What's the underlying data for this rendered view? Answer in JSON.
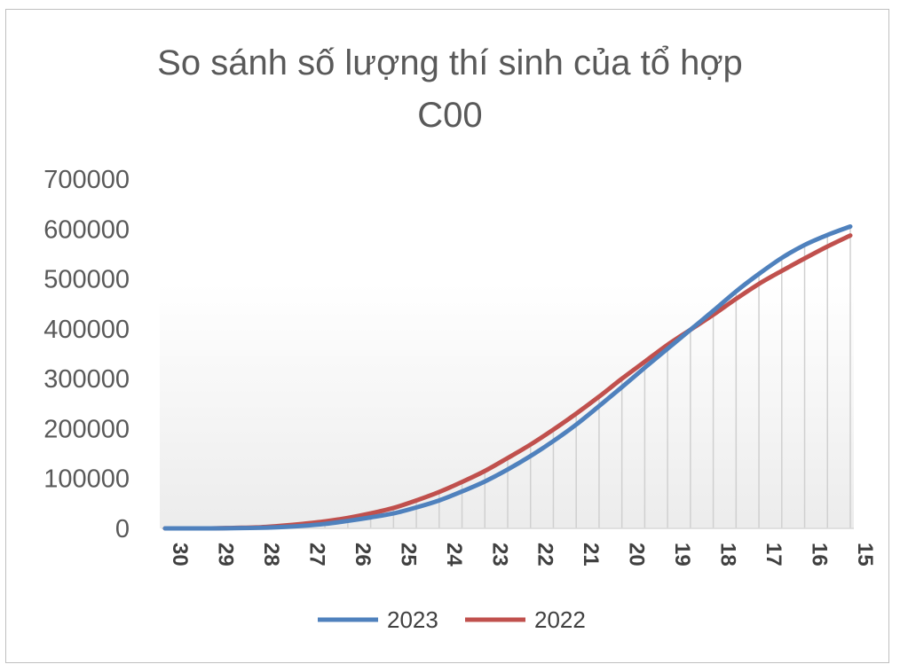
{
  "chart_data": {
    "type": "line",
    "title_lines": [
      "So sánh số lượng thí sinh của tổ hợp",
      "C00"
    ],
    "xlabel": "",
    "ylabel": "",
    "ylim": [
      0,
      700000
    ],
    "yticks": [
      "0",
      "100000",
      "200000",
      "300000",
      "400000",
      "500000",
      "600000",
      "700000"
    ],
    "x": [
      30,
      29.5,
      29,
      28.5,
      28,
      27.5,
      27,
      26.5,
      26,
      25.5,
      25,
      24.5,
      24,
      23.5,
      23,
      22.5,
      22,
      21.5,
      21,
      20.5,
      20,
      19.5,
      19,
      18.5,
      18,
      17.5,
      17,
      16.5,
      16,
      15.5,
      15
    ],
    "xticks": [
      "30",
      "29",
      "28",
      "27",
      "26",
      "25",
      "24",
      "23",
      "22",
      "21",
      "20",
      "19",
      "18",
      "17",
      "16",
      "15"
    ],
    "series": [
      {
        "name": "2023",
        "color": "#4f81bd",
        "values": [
          0,
          0,
          0,
          500,
          1000,
          2500,
          5000,
          9000,
          15000,
          22000,
          30000,
          42000,
          56000,
          74000,
          94000,
          118000,
          145000,
          175000,
          208000,
          245000,
          283000,
          322000,
          360000,
          398000,
          436000,
          475000,
          510000,
          542000,
          568000,
          588000,
          605000
        ]
      },
      {
        "name": "2022",
        "color": "#c0504d",
        "values": [
          0,
          0,
          0,
          1000,
          2000,
          5000,
          9000,
          14000,
          21000,
          30000,
          41000,
          56000,
          73000,
          93000,
          115000,
          141000,
          168000,
          198000,
          230000,
          264000,
          300000,
          334000,
          368000,
          398000,
          428000,
          460000,
          490000,
          516000,
          541000,
          565000,
          587000
        ]
      }
    ],
    "legend": "bottom"
  }
}
